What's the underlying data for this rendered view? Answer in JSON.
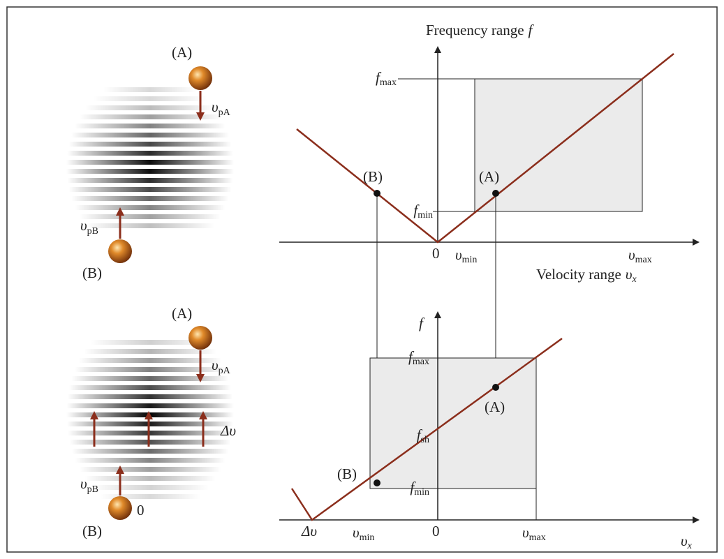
{
  "left_top": {
    "ball_a": "(A)",
    "vel_a": {
      "sym": "υ",
      "sub": "pA"
    },
    "vel_b": {
      "sym": "υ",
      "sub": "pB"
    },
    "ball_b": "(B)"
  },
  "left_bottom": {
    "ball_a": "(A)",
    "vel_a": {
      "sym": "υ",
      "sub": "pA"
    },
    "shift": "Δυ",
    "vel_b": {
      "sym": "υ",
      "sub": "pB"
    },
    "ball_b": "(B)",
    "ball_b_value": "0"
  },
  "top_graph": {
    "y_title": "Frequency range",
    "y_symbol": "f",
    "f_max": {
      "sym": "f",
      "sub": "max"
    },
    "f_min": {
      "sym": "f",
      "sub": "min"
    },
    "point_b": "(B)",
    "point_a": "(A)",
    "origin": "0",
    "v_min": {
      "sym": "υ",
      "sub": "min"
    },
    "v_max": {
      "sym": "υ",
      "sub": "max"
    },
    "x_title": "Velocity range",
    "x_symbol": {
      "sym": "υ",
      "sub": "x"
    }
  },
  "bottom_graph": {
    "y_symbol": "f",
    "f_max": {
      "sym": "f",
      "sub": "max"
    },
    "f_sh": {
      "sym": "f",
      "sub": "sh"
    },
    "f_min": {
      "sym": "f",
      "sub": "min"
    },
    "point_a": "(A)",
    "point_b": "(B)",
    "delta": "Δυ",
    "v_min": {
      "sym": "υ",
      "sub": "min"
    },
    "origin": "0",
    "v_max": {
      "sym": "υ",
      "sub": "max"
    },
    "x_symbol": {
      "sym": "υ",
      "sub": "x"
    }
  }
}
